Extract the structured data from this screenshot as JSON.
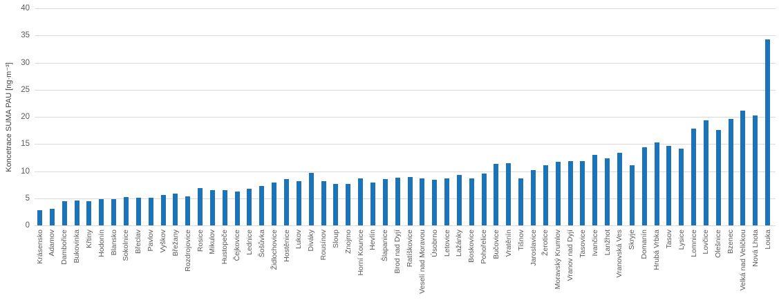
{
  "chart_data": {
    "type": "bar",
    "title": "",
    "xlabel": "",
    "ylabel": "Koncetrace SUMA PAU [ng·m⁻³]",
    "ylim": [
      0,
      40
    ],
    "ytick_step": 5,
    "yticks": [
      0,
      5,
      10,
      15,
      20,
      25,
      30,
      35,
      40
    ],
    "grid": true,
    "legend": false,
    "categories": [
      "Krásensko",
      "Adamov",
      "Dambořice",
      "Bukovinka",
      "Křtiny",
      "Hodonín",
      "Blansko",
      "Sokolnice",
      "Břeclav",
      "Pavlov",
      "Vyškov",
      "Břežany",
      "Rozdrojovice",
      "Rosice",
      "Mikulov",
      "Hustopeče",
      "Čejkovice",
      "Lednice",
      "Šošůvka",
      "Židlochovice",
      "Hostěnice",
      "Lukov",
      "Diváky",
      "Rousínov",
      "Sloup",
      "Znojmo",
      "Horní Kounice",
      "Hevlín",
      "Šlapanice",
      "Brod nad Dyjí",
      "Ratíškovice",
      "Veselí nad Moravou",
      "Úsobrno",
      "Letovice",
      "Lažánky",
      "Boskovice",
      "Pohořelice",
      "Bučovice",
      "Vratěnín",
      "Tišnov",
      "Jaroslavice",
      "Žerotice",
      "Moravský Krumlov",
      "Vranov nad Dyjí",
      "Tasovice",
      "Ivančice",
      "Lanžhot",
      "Vranovská Ves",
      "Skryje",
      "Domanín",
      "Hrubá Vrbka",
      "Tasov",
      "Lysice",
      "Lomnice",
      "Lovčice",
      "Olešnice",
      "Bzenec",
      "Velká nad Veličkou",
      "Nová Lhota",
      "Louka"
    ],
    "values": [
      2.8,
      3.0,
      4.5,
      4.6,
      4.5,
      4.9,
      4.8,
      5.2,
      5.1,
      5.1,
      5.6,
      5.9,
      5.4,
      6.9,
      6.5,
      6.5,
      6.3,
      6.7,
      7.2,
      7.9,
      8.5,
      8.2,
      9.7,
      8.2,
      7.7,
      7.6,
      8.6,
      7.9,
      8.5,
      8.8,
      8.9,
      8.7,
      8.4,
      8.7,
      9.3,
      8.7,
      9.6,
      11.4,
      11.5,
      8.6,
      10.2,
      11.1,
      11.7,
      11.8,
      11.8,
      13.0,
      12.3,
      13.4,
      11.1,
      14.4,
      15.3,
      14.6,
      14.1,
      17.8,
      19.4,
      17.6,
      19.6,
      21.2,
      20.3,
      34.3
    ],
    "bar_color": "#1B74B8"
  },
  "colors": {
    "background": "#FFFFFF",
    "gridline": "#D9D9D9",
    "axis_text": "#595959",
    "bar": "#1B74B8"
  }
}
